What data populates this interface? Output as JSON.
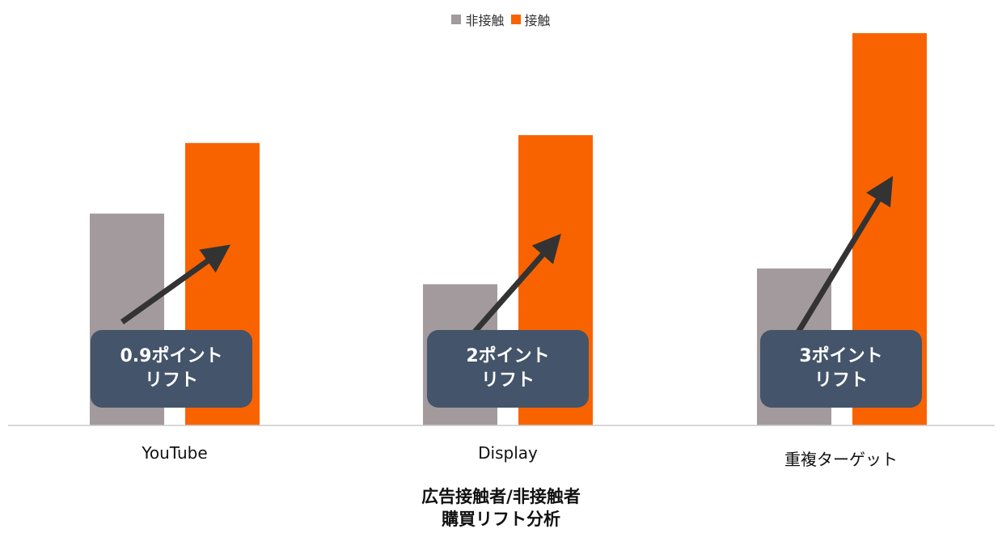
{
  "colors": {
    "non_contact": "#a29a9c",
    "contact": "#f86300",
    "callout_bg": "#44546a",
    "arrow": "#333333",
    "axis": "#cccccc"
  },
  "legend": {
    "non_contact": "非接触",
    "contact": "接触"
  },
  "chart_data": {
    "type": "bar",
    "categories": [
      "YouTube",
      "Display",
      "重複ターゲット"
    ],
    "series": [
      {
        "name": "非接触",
        "values": [
          2.7,
          1.8,
          2.0
        ]
      },
      {
        "name": "接触",
        "values": [
          3.6,
          3.7,
          5.0
        ]
      }
    ],
    "ylim": [
      0,
      5.0
    ],
    "grid": false,
    "legend_position": "top-center",
    "annotations": [
      {
        "category": "YouTube",
        "line1": "0.9ポイント",
        "line2": "リフト"
      },
      {
        "category": "Display",
        "line1": "2ポイント",
        "line2": "リフト"
      },
      {
        "category": "重複ターゲット",
        "line1": "3ポイント",
        "line2": "リフト"
      }
    ],
    "title_line1": "広告接触者/非接触者",
    "title_line2": "購買リフト分析"
  }
}
